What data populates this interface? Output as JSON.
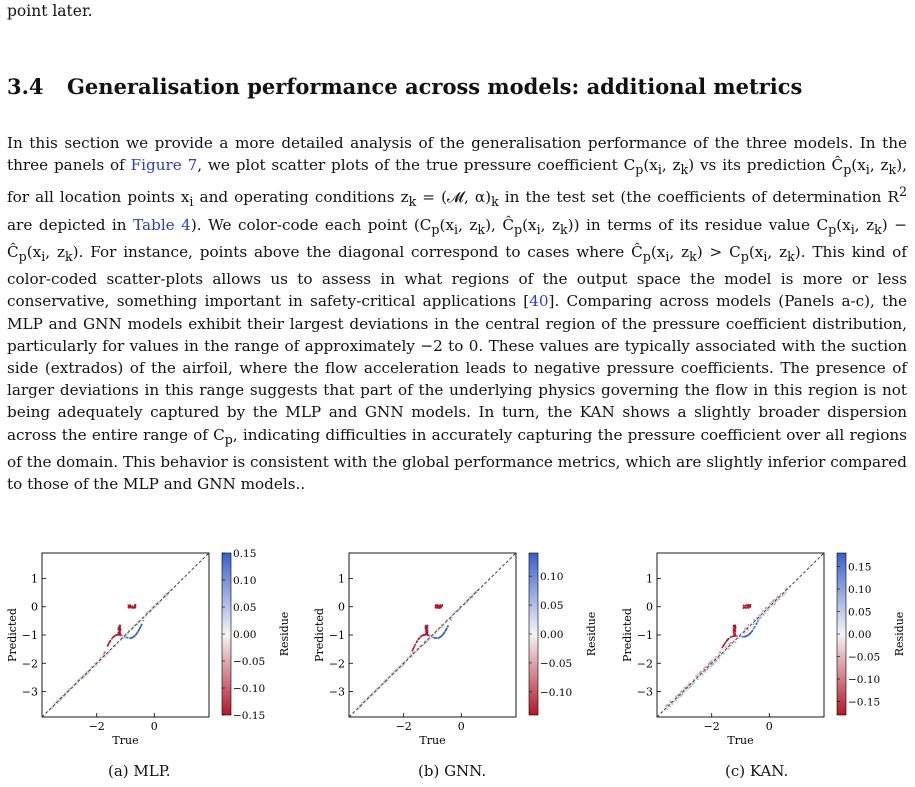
{
  "top_fragment": "point later.",
  "section": {
    "number": "3.4",
    "title": "Generalisation performance across models: additional metrics"
  },
  "paragraph": {
    "p1": "In this section we provide a more detailed analysis of the generalisation performance of the three models. In the three panels of ",
    "ref_fig7": "Figure 7",
    "p2": ", we plot scatter plots of the true pressure coefficient C",
    "p3": "(x",
    "p4": ", z",
    "p5": ") vs its prediction Ĉ",
    "p6": "(x",
    "p7": ", z",
    "p8": "), for all location points x",
    "p9": " and operating conditions z",
    "p10": " = (𝓜, α)",
    "p11": " in the test set (the coefficients of determination R",
    "p12": " are depicted in ",
    "ref_table4": "Table 4",
    "p13": "). We color-code each point (C",
    "p14": "(x",
    "p15": ", z",
    "p16": "), Ĉ",
    "p17": "(x",
    "p18": ", z",
    "p19": ")) in terms of its residue value C",
    "p20": "(x",
    "p21": ", z",
    "p22": ") − Ĉ",
    "p23": "(x",
    "p24": ", z",
    "p25": "). For instance, points above the diagonal correspond to cases where Ĉ",
    "p26": "(x",
    "p27": ", z",
    "p28": ") > C",
    "p29": "(x",
    "p30": ", z",
    "p31": "). This kind of color-coded scatter-plots allows us to assess in what regions of the output space the model is more or less conservative, something important in safety-critical applications [",
    "ref_40": "40",
    "p32": "]. Comparing across models (Panels a-c), the MLP and GNN models exhibit their largest deviations in the central region of the pressure coefficient distribution, particularly for values in the range of approximately −2 to 0. These values are typically associated with the suction side (extrados) of the airfoil, where the flow acceleration leads to negative pressure coefficients. The presence of larger deviations in this range suggests that part of the underlying physics governing the flow in this region is not being adequately captured by the MLP and GNN models. In turn, the KAN shows a slightly broader dispersion across the entire range of C",
    "p33": ", indicating difficulties in accurately capturing the pressure coefficient over all regions of the domain. This behavior is consistent with the global performance metrics, which are slightly inferior compared to those of the MLP and GNN models..",
    "sub_p": "p",
    "sub_i": "i",
    "sub_k": "k",
    "sup_2": "2"
  },
  "figure": {
    "colors": {
      "high": "#3a5fcd",
      "mid": "#f5f5f5",
      "low": "#b2182b",
      "diag": "#333333"
    },
    "panels": [
      {
        "caption": "(a) MLP.",
        "xlabel": "True",
        "ylabel": "Predicted",
        "cbar_label": "Residue",
        "xticks": [
          "−2",
          "0"
        ],
        "yticks": [
          "1",
          "0",
          "−1",
          "−2",
          "−3"
        ],
        "cbar_ticks": [
          "0.15",
          "0.10",
          "0.05",
          "0.00",
          "−0.05",
          "−0.10",
          "−0.15"
        ],
        "cbar_range": [
          -0.15,
          0.15
        ]
      },
      {
        "caption": "(b) GNN.",
        "xlabel": "True",
        "ylabel": "Predicted",
        "cbar_label": "Residue",
        "xticks": [
          "−2",
          "0"
        ],
        "yticks": [
          "1",
          "0",
          "−1",
          "−2",
          "−3"
        ],
        "cbar_ticks": [
          "0.10",
          "0.05",
          "0.00",
          "−0.05",
          "−0.10"
        ],
        "cbar_range": [
          -0.14,
          0.14
        ]
      },
      {
        "caption": "(c) KAN.",
        "xlabel": "True",
        "ylabel": "Predicted",
        "cbar_label": "Residue",
        "xticks": [
          "−2",
          "0"
        ],
        "yticks": [
          "1",
          "0",
          "−1",
          "−2",
          "−3"
        ],
        "cbar_ticks": [
          "0.15",
          "0.10",
          "0.05",
          "0.00",
          "−0.05",
          "−0.10",
          "−0.15"
        ],
        "cbar_range": [
          -0.18,
          0.18
        ]
      }
    ]
  }
}
